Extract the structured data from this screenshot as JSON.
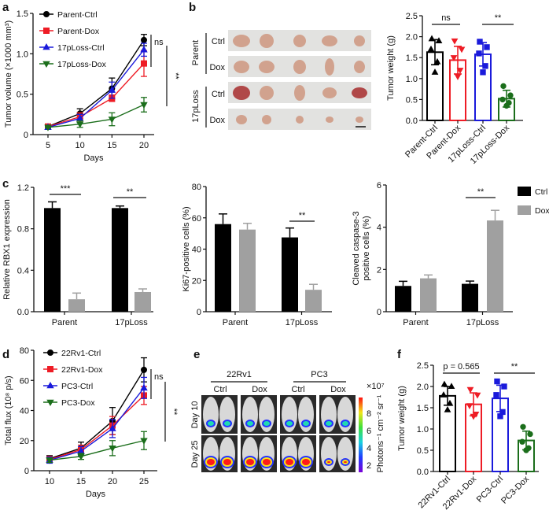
{
  "panels": {
    "a": "a",
    "b": "b",
    "c": "c",
    "d": "d",
    "e": "e",
    "f": "f"
  },
  "panel_b_photos": {
    "groups": [
      "Parent",
      "17pLoss"
    ],
    "rows": [
      "Ctrl",
      "Dox",
      "Ctrl",
      "Dox"
    ]
  },
  "panel_e_imaging": {
    "cell_lines": [
      "22Rv1",
      "PC3"
    ],
    "conditions": [
      "Ctrl",
      "Dox",
      "Ctrl",
      "Dox"
    ],
    "days": [
      "Day 10",
      "Day 25"
    ],
    "colorbar_scale": "×10⁷",
    "colorbar_ticks": [
      "8",
      "6",
      "4",
      "2"
    ],
    "colorbar_label": "Photons⁻¹ cm⁻² sr⁻¹"
  },
  "chart_data": [
    {
      "id": "a",
      "type": "line",
      "xlabel": "Days",
      "ylabel": "Tumor volume (×1000 mm³)",
      "x": [
        5,
        10,
        15,
        20
      ],
      "xticks": [
        "5",
        "10",
        "15",
        "20"
      ],
      "ylim": [
        0,
        1.5
      ],
      "yticks": [
        0,
        0.5,
        1.0,
        1.5
      ],
      "ytick_labels": [
        "0",
        "0.5",
        "1.0",
        "1.5"
      ],
      "legend": "top-left",
      "series": [
        {
          "name": "Parent-Ctrl",
          "color": "#000000",
          "marker": "circle",
          "values": [
            0.1,
            0.26,
            0.57,
            1.17
          ],
          "err": [
            0.02,
            0.06,
            0.13,
            0.07
          ]
        },
        {
          "name": "Parent-Dox",
          "color": "#ee1c25",
          "marker": "square",
          "values": [
            0.1,
            0.22,
            0.45,
            0.88
          ],
          "err": [
            0.02,
            0.05,
            0.04,
            0.16
          ]
        },
        {
          "name": "17pLoss-Ctrl",
          "color": "#1a1adb",
          "marker": "triangle-up",
          "values": [
            0.09,
            0.2,
            0.55,
            1.05
          ],
          "err": [
            0.02,
            0.05,
            0.1,
            0.08
          ]
        },
        {
          "name": "17pLoss-Dox",
          "color": "#1b6e1b",
          "marker": "triangle-down",
          "values": [
            0.09,
            0.13,
            0.19,
            0.37
          ],
          "err": [
            0.01,
            0.04,
            0.08,
            0.09
          ]
        }
      ],
      "annotations": [
        "ns",
        "**"
      ]
    },
    {
      "id": "b",
      "type": "bar",
      "ylabel": "Tumor weight (g)",
      "categories": [
        "Parent-Ctrl",
        "Parent-Dox",
        "17pLoss-Ctrl",
        "17pLoss-Dox"
      ],
      "ylim": [
        0,
        2.5
      ],
      "yticks": [
        0,
        0.5,
        1.0,
        1.5,
        2.0,
        2.5
      ],
      "ytick_labels": [
        "0.0",
        "0.5",
        "1.0",
        "1.5",
        "2.0",
        "2.5"
      ],
      "series": [
        {
          "name": "Parent-Ctrl",
          "color": "#000000",
          "marker": "triangle-up",
          "mean": 1.63,
          "sd": 0.3,
          "points": [
            1.95,
            1.9,
            1.7,
            1.4,
            1.15
          ]
        },
        {
          "name": "Parent-Dox",
          "color": "#ee1c25",
          "marker": "triangle-down",
          "mean": 1.44,
          "sd": 0.33,
          "points": [
            1.9,
            1.7,
            1.5,
            1.2,
            1.05
          ]
        },
        {
          "name": "17pLoss-Ctrl",
          "color": "#1a1adb",
          "marker": "square",
          "mean": 1.58,
          "sd": 0.28,
          "points": [
            1.88,
            1.75,
            1.6,
            1.3,
            1.15
          ]
        },
        {
          "name": "17pLoss-Dox",
          "color": "#1b6e1b",
          "marker": "circle",
          "mean": 0.52,
          "sd": 0.2,
          "points": [
            0.82,
            0.6,
            0.5,
            0.42,
            0.35
          ]
        }
      ],
      "annotations": [
        "ns",
        "**"
      ]
    },
    {
      "id": "c1",
      "type": "bar",
      "ylabel": "Relative RBX1 expression",
      "categories": [
        "Parent",
        "17pLoss"
      ],
      "ylim": [
        0,
        1.2
      ],
      "yticks": [
        0,
        0.4,
        0.8,
        1.2
      ],
      "ytick_labels": [
        "0.0",
        "0.4",
        "0.8",
        "1.2"
      ],
      "series": [
        {
          "name": "Ctrl",
          "color": "#000000",
          "values": [
            1.0,
            1.0
          ],
          "err": [
            0.06,
            0.02
          ]
        },
        {
          "name": "Dox",
          "color": "#a0a0a0",
          "values": [
            0.12,
            0.19
          ],
          "err": [
            0.06,
            0.03
          ]
        }
      ],
      "annotations": [
        "***",
        "**"
      ]
    },
    {
      "id": "c2",
      "type": "bar",
      "ylabel": "Ki67-positive cells (%)",
      "categories": [
        "Parent",
        "17pLoss"
      ],
      "ylim": [
        0,
        80
      ],
      "yticks": [
        0,
        20,
        40,
        60,
        80
      ],
      "ytick_labels": [
        "0",
        "20",
        "40",
        "60",
        "80"
      ],
      "series": [
        {
          "name": "Ctrl",
          "color": "#000000",
          "values": [
            56,
            47.5
          ],
          "err": [
            6.5,
            6
          ]
        },
        {
          "name": "Dox",
          "color": "#a0a0a0",
          "values": [
            52.5,
            14
          ],
          "err": [
            4,
            3.5
          ]
        }
      ],
      "annotations": [
        "**"
      ]
    },
    {
      "id": "c3",
      "type": "bar",
      "ylabel": "Cleaved caspase-3",
      "ylabel2": "positive cells (%)",
      "categories": [
        "Parent",
        "17pLoss"
      ],
      "ylim": [
        0,
        6
      ],
      "yticks": [
        0,
        2,
        4,
        6
      ],
      "ytick_labels": [
        "0",
        "2",
        "4",
        "6"
      ],
      "legend": "top-right",
      "series": [
        {
          "name": "Ctrl",
          "color": "#000000",
          "values": [
            1.22,
            1.32
          ],
          "err": [
            0.22,
            0.13
          ]
        },
        {
          "name": "Dox",
          "color": "#a0a0a0",
          "values": [
            1.58,
            4.32
          ],
          "err": [
            0.16,
            0.48
          ]
        }
      ],
      "annotations": [
        "**"
      ]
    },
    {
      "id": "d",
      "type": "line",
      "xlabel": "Days",
      "ylabel": "Total flux (10⁸ p/s)",
      "x": [
        10,
        15,
        20,
        25
      ],
      "xticks": [
        "10",
        "15",
        "20",
        "25"
      ],
      "ylim": [
        0,
        80
      ],
      "yticks": [
        0,
        20,
        40,
        60,
        80
      ],
      "ytick_labels": [
        "0",
        "20",
        "40",
        "60",
        "80"
      ],
      "legend": "top-left",
      "series": [
        {
          "name": "22Rv1-Ctrl",
          "color": "#000000",
          "marker": "circle",
          "values": [
            8,
            15,
            33,
            67
          ],
          "err": [
            2,
            4,
            9,
            8
          ]
        },
        {
          "name": "22Rv1-Dox",
          "color": "#ee1c25",
          "marker": "square",
          "values": [
            7.5,
            14,
            30,
            50
          ],
          "err": [
            2,
            3,
            6,
            6
          ]
        },
        {
          "name": "PC3-Ctrl",
          "color": "#1a1adb",
          "marker": "triangle-up",
          "values": [
            7,
            13,
            28,
            55
          ],
          "err": [
            2,
            3,
            6,
            7
          ]
        },
        {
          "name": "PC3-Dox",
          "color": "#1b6e1b",
          "marker": "triangle-down",
          "values": [
            7,
            9.5,
            15,
            20
          ],
          "err": [
            1.5,
            2,
            5,
            6
          ]
        }
      ],
      "annotations": [
        "ns",
        "**"
      ]
    },
    {
      "id": "f",
      "type": "bar",
      "ylabel": "Tumor weight (g)",
      "categories": [
        "22Rv1-Ctrl",
        "22Rv1-Dox",
        "PC3-Ctrl",
        "PC3-Dox"
      ],
      "ylim": [
        0,
        2.5
      ],
      "yticks": [
        0,
        0.5,
        1.0,
        1.5,
        2.0,
        2.5
      ],
      "ytick_labels": [
        "0.0",
        "0.5",
        "1.0",
        "1.5",
        "2.0",
        "2.5"
      ],
      "series": [
        {
          "name": "22Rv1-Ctrl",
          "color": "#000000",
          "marker": "triangle-up",
          "mean": 1.78,
          "sd": 0.22,
          "points": [
            2.05,
            2.0,
            1.8,
            1.6,
            1.45
          ]
        },
        {
          "name": "22Rv1-Dox",
          "color": "#ee1c25",
          "marker": "triangle-down",
          "mean": 1.58,
          "sd": 0.27,
          "points": [
            1.93,
            1.8,
            1.55,
            1.35,
            1.3
          ]
        },
        {
          "name": "PC3-Ctrl",
          "color": "#1a1adb",
          "marker": "square",
          "mean": 1.72,
          "sd": 0.31,
          "points": [
            2.12,
            2.0,
            1.8,
            1.4,
            1.3
          ]
        },
        {
          "name": "PC3-Dox",
          "color": "#1b6e1b",
          "marker": "circle",
          "mean": 0.73,
          "sd": 0.22,
          "points": [
            1.05,
            0.88,
            0.7,
            0.55,
            0.5
          ]
        }
      ],
      "annotations": [
        "p = 0.565",
        "**"
      ]
    }
  ]
}
